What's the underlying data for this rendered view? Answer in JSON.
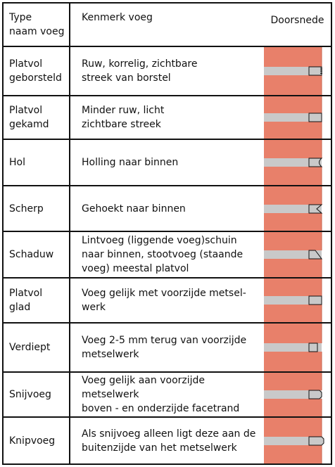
{
  "header": {
    "col_type": "Type\nnaam voeg",
    "col_feature": "Kenmerk voeg",
    "col_section": "Doorsnede"
  },
  "rows": [
    {
      "name": "Platvol\ngeborsteld",
      "description": "Ruw, korrelig, zichtbare\nstreek van borstel",
      "profile": "brushed"
    },
    {
      "name": "Platvol\ngekamd",
      "description": "Minder ruw, licht\nzichtbare streek",
      "profile": "combed"
    },
    {
      "name": "Hol",
      "description": "Holling naar binnen",
      "profile": "concave"
    },
    {
      "name": "Scherp",
      "description": "Gehoekt naar binnen",
      "profile": "vee"
    },
    {
      "name": "Schaduw",
      "description": "Lintvoeg (liggende voeg)schuin\nnaar binnen, stootvoeg (staande\nvoeg) meestal platvol",
      "profile": "shadow"
    },
    {
      "name": "Platvol\nglad",
      "description": "Voeg gelijk met voorzijde metsel-\nwerk",
      "profile": "flush"
    },
    {
      "name": "Verdiept",
      "description": "Voeg 2-5 mm terug van voorzijde\nmetselwerk",
      "profile": "recessed"
    },
    {
      "name": "Snijvoeg",
      "description": "Voeg gelijk aan voorzijde metselwerk\nboven - en onderzijde facetrand",
      "profile": "cut"
    },
    {
      "name": "Knipvoeg",
      "description": "Als snijvoeg alleen ligt deze aan de\nbuitenzijde van het metselwerk",
      "profile": "clipped"
    }
  ],
  "colors": {
    "brick": "#e8806a",
    "brick_edge": "#c9634e",
    "mortar": "#c9c9c9",
    "line": "#111111"
  }
}
